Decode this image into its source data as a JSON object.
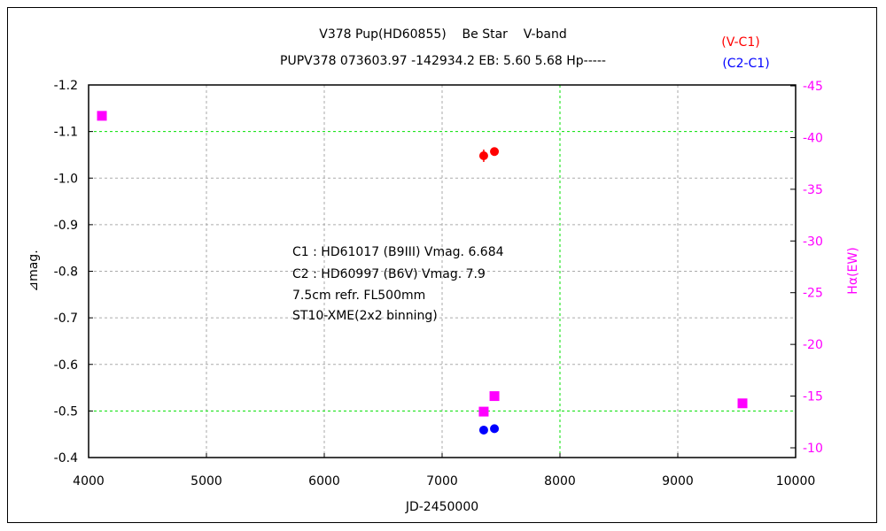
{
  "chart_data": {
    "type": "scatter",
    "title": "V378 Pup(HD60855)    Be Star    V-band",
    "subtitle": "PUPV378 073603.97 -142934.2 EB: 5.60 5.68 Hp-----",
    "xlabel": "JD-2450000",
    "ylabel": "⊿mag.",
    "y2label": "Hα(EW)",
    "xlim": [
      4000,
      10000
    ],
    "ylim": [
      -1.2,
      -0.4
    ],
    "y_inverted": true,
    "y2lim": [
      -45,
      -10
    ],
    "y2_inverted": true,
    "grid": true,
    "x_ticks": [
      "4000",
      "5000",
      "6000",
      "7000",
      "8000",
      "9000",
      "10000"
    ],
    "y_ticks": [
      "-1.2",
      "-1.1",
      "-1.0",
      "-0.9",
      "-0.8",
      "-0.7",
      "-0.6",
      "-0.5",
      "-0.4"
    ],
    "y2_ticks": [
      "-45",
      "-40",
      "-35",
      "-30",
      "-25",
      "-20",
      "-15",
      "-10"
    ],
    "legend_position": "top-right",
    "annotation": [
      "C1 : HD61017 (B9III) Vmag. 6.684",
      "C2 : HD60997 (B6V) Vmag. 7.9",
      "7.5cm refr. FL500mm",
      "ST10-XME(2x2 binning)"
    ],
    "series": [
      {
        "name": "(V-C1)",
        "color": "#ff0000",
        "marker": "circle",
        "axis": "left",
        "x": [
          7353,
          7444
        ],
        "y": [
          -1.048,
          -1.057
        ]
      },
      {
        "name": "(C2-C1)",
        "color": "#0000ff",
        "marker": "circle",
        "axis": "left",
        "x": [
          7353,
          7444
        ],
        "y": [
          -0.459,
          -0.462
        ]
      },
      {
        "color": "#ff00ff",
        "marker": "square",
        "axis": "right",
        "x": [
          4113,
          7353,
          7444,
          9549
        ],
        "y": [
          -42.1,
          -13.5,
          -15.0,
          -14.3
        ]
      }
    ]
  }
}
